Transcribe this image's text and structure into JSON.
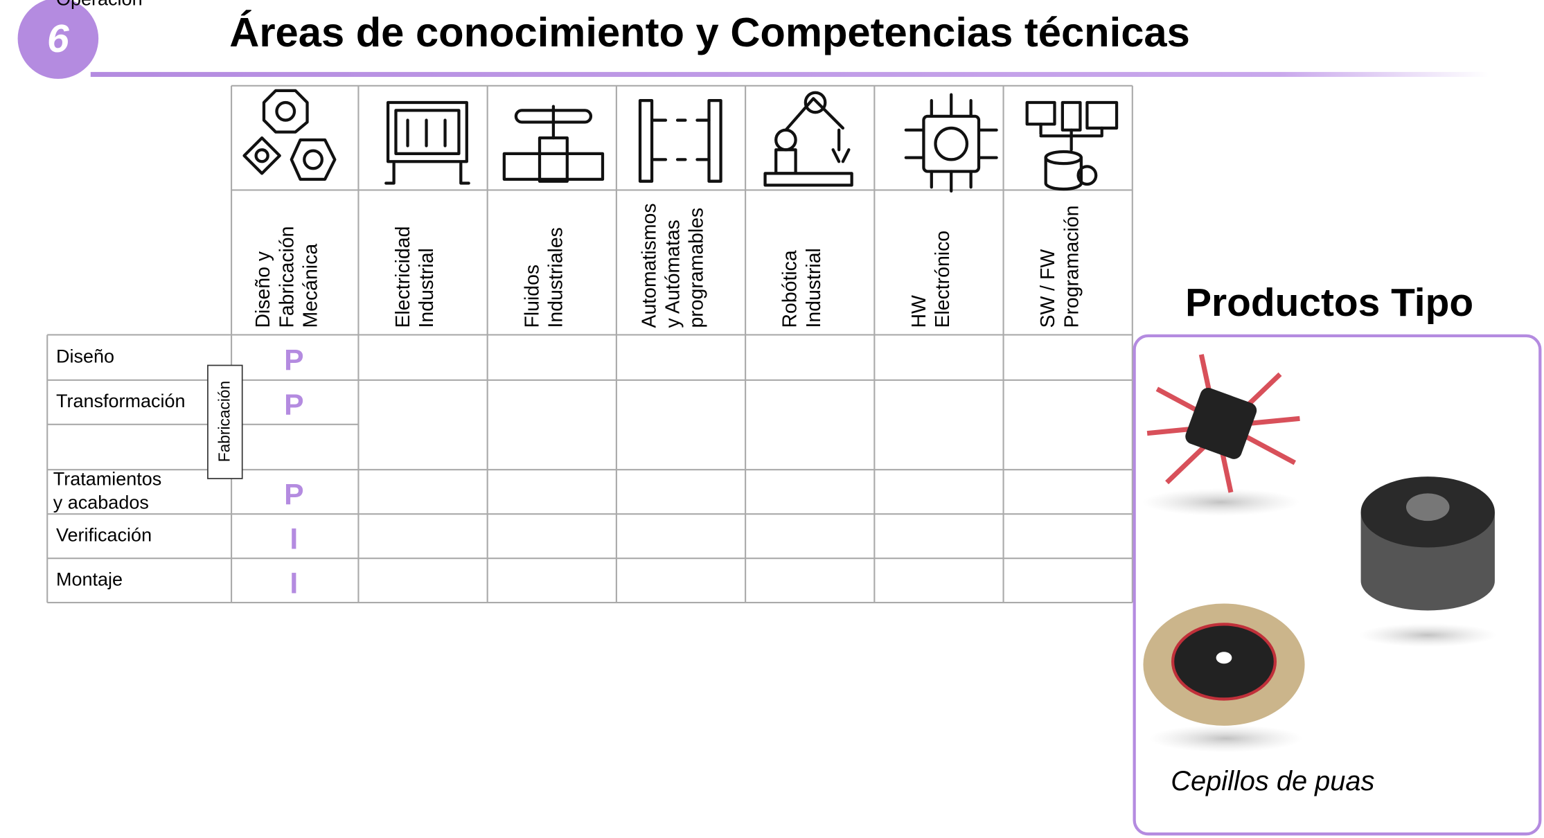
{
  "badge": "6",
  "title": "Áreas de conocimiento y Competencias técnicas",
  "table": {
    "columns": [
      [
        "Diseño y",
        "Fabricación",
        "Mecánica"
      ],
      [
        "Electricidad",
        "Industrial"
      ],
      [
        "Fluidos",
        "Industriales"
      ],
      [
        "Automatismos",
        "y Autómatas",
        "programables"
      ],
      [
        "Robótica",
        "Industrial"
      ],
      [
        "HW",
        "Electrónico"
      ],
      [
        "SW / FW",
        "Programación"
      ]
    ],
    "rows": [
      [
        "Diseño"
      ],
      [
        "Transformación"
      ],
      [
        "Tratamientos",
        "y acabados"
      ],
      [
        "Verificación"
      ],
      [
        "Montaje"
      ],
      [
        "Operación"
      ]
    ],
    "group_label": "Fabricación",
    "cells": [
      [
        "P"
      ],
      [
        "P"
      ],
      [
        "P"
      ],
      [
        "I"
      ],
      [
        "I"
      ],
      [
        null
      ]
    ]
  },
  "products": {
    "title": "Productos Tipo",
    "caption": "Cepillos de puas"
  }
}
